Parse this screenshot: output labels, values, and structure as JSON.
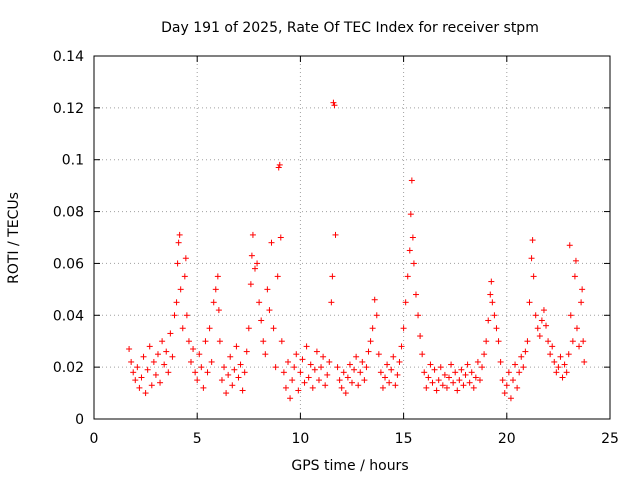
{
  "chart_data": {
    "type": "scatter",
    "title": "Day 191 of 2025, Rate Of TEC Index for receiver stpm",
    "xlabel": "GPS time / hours",
    "ylabel": "ROTI / TECUs",
    "xlim": [
      0,
      25
    ],
    "ylim": [
      0,
      0.14
    ],
    "xticks": [
      0,
      5,
      10,
      15,
      20,
      25
    ],
    "xtick_labels": [
      "0",
      "5",
      "10",
      "15",
      "20",
      "25"
    ],
    "yticks": [
      0,
      0.02,
      0.04,
      0.06,
      0.08,
      0.1,
      0.12,
      0.14
    ],
    "ytick_labels": [
      "0",
      "0.02",
      "0.04",
      "0.06",
      "0.08",
      "0.1",
      "0.12",
      "0.14"
    ],
    "grid": true,
    "marker": "plus",
    "marker_color": "#ff0000",
    "series": [
      {
        "name": "ROTI",
        "note": "representative sample of the dense scatter",
        "points": [
          [
            1.7,
            0.027
          ],
          [
            1.8,
            0.022
          ],
          [
            1.9,
            0.018
          ],
          [
            2.0,
            0.015
          ],
          [
            2.1,
            0.02
          ],
          [
            2.2,
            0.012
          ],
          [
            2.3,
            0.016
          ],
          [
            2.4,
            0.024
          ],
          [
            2.5,
            0.01
          ],
          [
            2.6,
            0.019
          ],
          [
            2.7,
            0.028
          ],
          [
            2.8,
            0.013
          ],
          [
            2.9,
            0.022
          ],
          [
            3.0,
            0.017
          ],
          [
            3.1,
            0.025
          ],
          [
            3.2,
            0.014
          ],
          [
            3.3,
            0.03
          ],
          [
            3.4,
            0.021
          ],
          [
            3.5,
            0.026
          ],
          [
            3.6,
            0.018
          ],
          [
            3.7,
            0.033
          ],
          [
            3.8,
            0.024
          ],
          [
            3.9,
            0.04
          ],
          [
            4.0,
            0.045
          ],
          [
            4.05,
            0.06
          ],
          [
            4.1,
            0.068
          ],
          [
            4.15,
            0.071
          ],
          [
            4.2,
            0.05
          ],
          [
            4.3,
            0.035
          ],
          [
            4.4,
            0.055
          ],
          [
            4.45,
            0.062
          ],
          [
            4.5,
            0.04
          ],
          [
            4.6,
            0.03
          ],
          [
            4.7,
            0.022
          ],
          [
            4.8,
            0.027
          ],
          [
            4.9,
            0.018
          ],
          [
            5.0,
            0.015
          ],
          [
            5.1,
            0.025
          ],
          [
            5.2,
            0.02
          ],
          [
            5.3,
            0.012
          ],
          [
            5.4,
            0.03
          ],
          [
            5.5,
            0.018
          ],
          [
            5.6,
            0.035
          ],
          [
            5.7,
            0.022
          ],
          [
            5.8,
            0.045
          ],
          [
            5.9,
            0.05
          ],
          [
            6.0,
            0.055
          ],
          [
            6.05,
            0.042
          ],
          [
            6.1,
            0.03
          ],
          [
            6.2,
            0.015
          ],
          [
            6.3,
            0.02
          ],
          [
            6.4,
            0.01
          ],
          [
            6.5,
            0.017
          ],
          [
            6.6,
            0.024
          ],
          [
            6.7,
            0.013
          ],
          [
            6.8,
            0.019
          ],
          [
            6.9,
            0.028
          ],
          [
            7.0,
            0.016
          ],
          [
            7.1,
            0.021
          ],
          [
            7.2,
            0.011
          ],
          [
            7.3,
            0.018
          ],
          [
            7.4,
            0.026
          ],
          [
            7.5,
            0.035
          ],
          [
            7.6,
            0.052
          ],
          [
            7.65,
            0.063
          ],
          [
            7.7,
            0.071
          ],
          [
            7.8,
            0.058
          ],
          [
            7.9,
            0.06
          ],
          [
            8.0,
            0.045
          ],
          [
            8.1,
            0.038
          ],
          [
            8.2,
            0.03
          ],
          [
            8.3,
            0.025
          ],
          [
            8.4,
            0.05
          ],
          [
            8.5,
            0.042
          ],
          [
            8.6,
            0.068
          ],
          [
            8.7,
            0.035
          ],
          [
            8.8,
            0.02
          ],
          [
            8.9,
            0.055
          ],
          [
            8.95,
            0.097
          ],
          [
            9.0,
            0.098
          ],
          [
            9.05,
            0.07
          ],
          [
            9.1,
            0.03
          ],
          [
            9.2,
            0.018
          ],
          [
            9.3,
            0.012
          ],
          [
            9.4,
            0.022
          ],
          [
            9.5,
            0.008
          ],
          [
            9.6,
            0.015
          ],
          [
            9.7,
            0.02
          ],
          [
            9.8,
            0.025
          ],
          [
            9.9,
            0.011
          ],
          [
            10.0,
            0.018
          ],
          [
            10.1,
            0.023
          ],
          [
            10.2,
            0.014
          ],
          [
            10.3,
            0.028
          ],
          [
            10.4,
            0.016
          ],
          [
            10.5,
            0.021
          ],
          [
            10.6,
            0.012
          ],
          [
            10.7,
            0.019
          ],
          [
            10.8,
            0.026
          ],
          [
            10.9,
            0.015
          ],
          [
            11.0,
            0.02
          ],
          [
            11.1,
            0.024
          ],
          [
            11.2,
            0.013
          ],
          [
            11.3,
            0.017
          ],
          [
            11.4,
            0.022
          ],
          [
            11.5,
            0.045
          ],
          [
            11.55,
            0.055
          ],
          [
            11.6,
            0.122
          ],
          [
            11.65,
            0.121
          ],
          [
            11.7,
            0.071
          ],
          [
            11.8,
            0.02
          ],
          [
            11.9,
            0.015
          ],
          [
            12.0,
            0.012
          ],
          [
            12.1,
            0.018
          ],
          [
            12.2,
            0.01
          ],
          [
            12.3,
            0.016
          ],
          [
            12.4,
            0.021
          ],
          [
            12.5,
            0.014
          ],
          [
            12.6,
            0.019
          ],
          [
            12.7,
            0.024
          ],
          [
            12.8,
            0.013
          ],
          [
            12.9,
            0.018
          ],
          [
            13.0,
            0.022
          ],
          [
            13.1,
            0.015
          ],
          [
            13.2,
            0.02
          ],
          [
            13.3,
            0.026
          ],
          [
            13.4,
            0.03
          ],
          [
            13.5,
            0.035
          ],
          [
            13.6,
            0.046
          ],
          [
            13.7,
            0.04
          ],
          [
            13.8,
            0.025
          ],
          [
            13.9,
            0.018
          ],
          [
            14.0,
            0.012
          ],
          [
            14.1,
            0.016
          ],
          [
            14.2,
            0.021
          ],
          [
            14.3,
            0.014
          ],
          [
            14.4,
            0.019
          ],
          [
            14.5,
            0.024
          ],
          [
            14.6,
            0.013
          ],
          [
            14.7,
            0.017
          ],
          [
            14.8,
            0.022
          ],
          [
            14.9,
            0.028
          ],
          [
            15.0,
            0.035
          ],
          [
            15.1,
            0.045
          ],
          [
            15.2,
            0.055
          ],
          [
            15.3,
            0.065
          ],
          [
            15.35,
            0.079
          ],
          [
            15.4,
            0.092
          ],
          [
            15.45,
            0.07
          ],
          [
            15.5,
            0.06
          ],
          [
            15.6,
            0.048
          ],
          [
            15.7,
            0.04
          ],
          [
            15.8,
            0.032
          ],
          [
            15.9,
            0.025
          ],
          [
            16.0,
            0.018
          ],
          [
            16.1,
            0.012
          ],
          [
            16.2,
            0.016
          ],
          [
            16.3,
            0.021
          ],
          [
            16.4,
            0.014
          ],
          [
            16.5,
            0.019
          ],
          [
            16.6,
            0.011
          ],
          [
            16.7,
            0.015
          ],
          [
            16.8,
            0.02
          ],
          [
            16.9,
            0.013
          ],
          [
            17.0,
            0.017
          ],
          [
            17.1,
            0.012
          ],
          [
            17.2,
            0.016
          ],
          [
            17.3,
            0.021
          ],
          [
            17.4,
            0.014
          ],
          [
            17.5,
            0.018
          ],
          [
            17.6,
            0.011
          ],
          [
            17.7,
            0.015
          ],
          [
            17.8,
            0.019
          ],
          [
            17.9,
            0.013
          ],
          [
            18.0,
            0.017
          ],
          [
            18.1,
            0.021
          ],
          [
            18.2,
            0.014
          ],
          [
            18.3,
            0.018
          ],
          [
            18.4,
            0.012
          ],
          [
            18.5,
            0.016
          ],
          [
            18.6,
            0.022
          ],
          [
            18.7,
            0.015
          ],
          [
            18.8,
            0.02
          ],
          [
            18.9,
            0.025
          ],
          [
            19.0,
            0.03
          ],
          [
            19.1,
            0.038
          ],
          [
            19.2,
            0.048
          ],
          [
            19.25,
            0.053
          ],
          [
            19.3,
            0.045
          ],
          [
            19.4,
            0.04
          ],
          [
            19.5,
            0.035
          ],
          [
            19.6,
            0.03
          ],
          [
            19.7,
            0.022
          ],
          [
            19.8,
            0.015
          ],
          [
            19.9,
            0.01
          ],
          [
            20.0,
            0.013
          ],
          [
            20.1,
            0.018
          ],
          [
            20.2,
            0.008
          ],
          [
            20.3,
            0.015
          ],
          [
            20.4,
            0.021
          ],
          [
            20.5,
            0.012
          ],
          [
            20.6,
            0.018
          ],
          [
            20.7,
            0.024
          ],
          [
            20.8,
            0.02
          ],
          [
            20.9,
            0.026
          ],
          [
            21.0,
            0.03
          ],
          [
            21.1,
            0.045
          ],
          [
            21.2,
            0.062
          ],
          [
            21.25,
            0.069
          ],
          [
            21.3,
            0.055
          ],
          [
            21.4,
            0.04
          ],
          [
            21.5,
            0.035
          ],
          [
            21.6,
            0.032
          ],
          [
            21.7,
            0.038
          ],
          [
            21.8,
            0.042
          ],
          [
            21.9,
            0.036
          ],
          [
            22.0,
            0.03
          ],
          [
            22.1,
            0.025
          ],
          [
            22.2,
            0.028
          ],
          [
            22.3,
            0.022
          ],
          [
            22.4,
            0.018
          ],
          [
            22.5,
            0.02
          ],
          [
            22.6,
            0.024
          ],
          [
            22.7,
            0.016
          ],
          [
            22.8,
            0.021
          ],
          [
            22.9,
            0.018
          ],
          [
            23.0,
            0.025
          ],
          [
            23.05,
            0.067
          ],
          [
            23.1,
            0.04
          ],
          [
            23.2,
            0.03
          ],
          [
            23.3,
            0.055
          ],
          [
            23.35,
            0.061
          ],
          [
            23.4,
            0.035
          ],
          [
            23.5,
            0.028
          ],
          [
            23.6,
            0.045
          ],
          [
            23.65,
            0.05
          ],
          [
            23.7,
            0.03
          ],
          [
            23.75,
            0.022
          ]
        ]
      }
    ]
  }
}
